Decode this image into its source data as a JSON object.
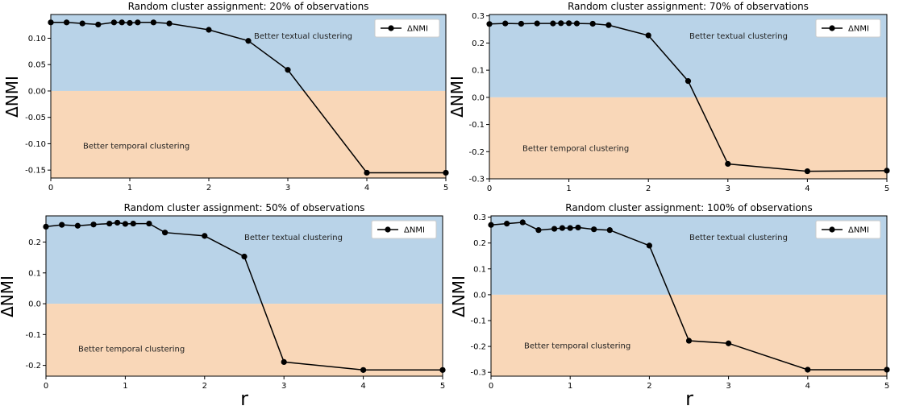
{
  "colors": {
    "textual_region": "#b9d3e8",
    "temporal_region": "#f9d7b8",
    "line": "#000000"
  },
  "legend_label": "ΔNMI",
  "y_axis_label": "ΔNMI",
  "x_axis_label": "r",
  "chart_data": [
    {
      "type": "line",
      "title": "Random cluster assignment: 20% of observations",
      "xlabel": "",
      "ylabel": "ΔNMI",
      "xlim": [
        0,
        5
      ],
      "ylim": [
        -0.165,
        0.145
      ],
      "xticks": [
        0,
        1,
        2,
        3,
        4,
        5
      ],
      "xtick_labels": [
        "0",
        "1",
        "2",
        "3",
        "4",
        "5"
      ],
      "yticks": [
        0.1,
        0.05,
        0.0,
        -0.05,
        -0.1,
        -0.15
      ],
      "ytick_labels": [
        "0.10",
        "0.05",
        "0.00",
        "-0.05",
        "-0.10",
        "-0.15"
      ],
      "upper_region_label": "Better textual clustering",
      "lower_region_label": "Better temporal clustering",
      "legend_position": "top-right",
      "series": [
        {
          "name": "ΔNMI",
          "x": [
            0,
            0.2,
            0.4,
            0.6,
            0.8,
            0.9,
            1.0,
            1.1,
            1.3,
            1.5,
            2.0,
            2.5,
            3.0,
            4.0,
            5.0
          ],
          "y": [
            0.13,
            0.13,
            0.128,
            0.126,
            0.13,
            0.13,
            0.129,
            0.13,
            0.13,
            0.128,
            0.116,
            0.095,
            0.04,
            -0.155,
            -0.155
          ]
        }
      ]
    },
    {
      "type": "line",
      "title": "Random cluster assignment: 70% of observations",
      "xlabel": "",
      "ylabel": "ΔNMI",
      "xlim": [
        0,
        5
      ],
      "ylim": [
        -0.3,
        0.305
      ],
      "xticks": [
        0,
        1,
        2,
        3,
        4,
        5
      ],
      "xtick_labels": [
        "0",
        "1",
        "2",
        "3",
        "4",
        "5"
      ],
      "yticks": [
        0.3,
        0.2,
        0.1,
        0.0,
        -0.1,
        -0.2,
        -0.3
      ],
      "ytick_labels": [
        "0.3",
        "0.2",
        "0.1",
        "0.0",
        "-0.1",
        "-0.2",
        "-0.3"
      ],
      "upper_region_label": "Better textual clustering",
      "lower_region_label": "Better temporal clustering",
      "legend_position": "top-right",
      "series": [
        {
          "name": "ΔNMI",
          "x": [
            0,
            0.2,
            0.4,
            0.6,
            0.8,
            0.9,
            1.0,
            1.1,
            1.3,
            1.5,
            2.0,
            2.5,
            3.0,
            4.0,
            5.0
          ],
          "y": [
            0.27,
            0.272,
            0.271,
            0.272,
            0.272,
            0.273,
            0.273,
            0.272,
            0.271,
            0.266,
            0.228,
            0.06,
            -0.245,
            -0.272,
            -0.27
          ]
        }
      ]
    },
    {
      "type": "line",
      "title": "Random cluster assignment: 50% of observations",
      "xlabel": "",
      "ylabel": "ΔNMI",
      "xlim": [
        0,
        5
      ],
      "ylim": [
        -0.235,
        0.285
      ],
      "xticks": [
        0,
        1,
        2,
        3,
        4,
        5
      ],
      "xtick_labels": [
        "0",
        "1",
        "2",
        "3",
        "4",
        "5"
      ],
      "yticks": [
        0.2,
        0.1,
        0.0,
        -0.1,
        -0.2
      ],
      "ytick_labels": [
        "0.2",
        "0.1",
        "0.0",
        "-0.1",
        "-0.2"
      ],
      "upper_region_label": "Better textual clustering",
      "lower_region_label": "Better temporal clustering",
      "legend_position": "top-right",
      "series": [
        {
          "name": "ΔNMI",
          "x": [
            0,
            0.2,
            0.4,
            0.6,
            0.8,
            0.9,
            1.0,
            1.1,
            1.3,
            1.5,
            2.0,
            2.5,
            3.0,
            4.0,
            5.0
          ],
          "y": [
            0.25,
            0.256,
            0.253,
            0.257,
            0.26,
            0.263,
            0.259,
            0.26,
            0.26,
            0.231,
            0.22,
            0.153,
            -0.189,
            -0.215,
            -0.215
          ]
        }
      ]
    },
    {
      "type": "line",
      "title": "Random cluster assignment: 100% of observations",
      "xlabel": "r",
      "ylabel": "ΔNMI",
      "xlim": [
        0,
        5
      ],
      "ylim": [
        -0.315,
        0.305
      ],
      "xticks": [
        0,
        1,
        2,
        3,
        4,
        5
      ],
      "xtick_labels": [
        "0",
        "1",
        "2",
        "3",
        "4",
        "5"
      ],
      "yticks": [
        0.3,
        0.2,
        0.1,
        0.0,
        -0.1,
        -0.2,
        -0.3
      ],
      "ytick_labels": [
        "0.3",
        "0.2",
        "0.1",
        "0.0",
        "-0.1",
        "-0.2",
        "-0.3"
      ],
      "upper_region_label": "Better textual clustering",
      "lower_region_label": "Better temporal clustering",
      "legend_position": "top-right",
      "series": [
        {
          "name": "ΔNMI",
          "x": [
            0,
            0.2,
            0.4,
            0.6,
            0.8,
            0.9,
            1.0,
            1.1,
            1.3,
            1.5,
            2.0,
            2.5,
            3.0,
            4.0,
            5.0
          ],
          "y": [
            0.27,
            0.275,
            0.28,
            0.25,
            0.255,
            0.258,
            0.258,
            0.26,
            0.253,
            0.25,
            0.19,
            -0.178,
            -0.188,
            -0.29,
            -0.29
          ]
        }
      ]
    }
  ]
}
